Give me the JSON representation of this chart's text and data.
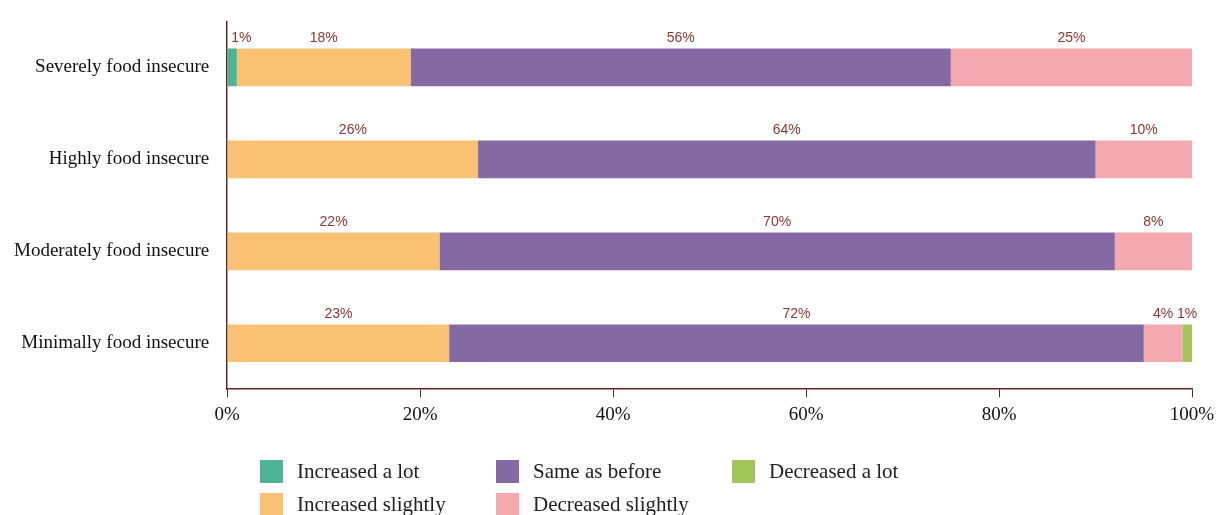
{
  "chart_data": {
    "type": "bar",
    "orientation": "horizontal",
    "stacked": true,
    "legend": "bottom",
    "grid": false,
    "categories": [
      "Severely food insecure",
      "Highly food insecure",
      "Moderately food insecure",
      "Minimally food insecure"
    ],
    "xlim": [
      0,
      100
    ],
    "xticks": [
      {
        "value": 0,
        "label": "0%"
      },
      {
        "value": 20,
        "label": "20%"
      },
      {
        "value": 40,
        "label": "40%"
      },
      {
        "value": 60,
        "label": "60%"
      },
      {
        "value": 80,
        "label": "80%"
      },
      {
        "value": 100,
        "label": "100%"
      }
    ],
    "series": [
      {
        "name": "Increased a lot",
        "color": "#4eb594",
        "values": [
          1,
          null,
          null,
          null
        ],
        "value_labels": [
          "1%",
          null,
          null,
          null
        ]
      },
      {
        "name": "Increased slightly",
        "color": "#f8c173",
        "values": [
          18,
          26,
          22,
          23
        ],
        "value_labels": [
          "18%",
          "26%",
          "22%",
          "23%"
        ]
      },
      {
        "name": "Same as before",
        "color": "#8469a4",
        "values": [
          56,
          64,
          70,
          72
        ],
        "value_labels": [
          "56%",
          "64%",
          "70%",
          "72%"
        ]
      },
      {
        "name": "Decreased slightly",
        "color": "#f4a9af",
        "values": [
          25,
          10,
          8,
          4
        ],
        "value_labels": [
          "25%",
          "10%",
          "8%",
          "4%"
        ]
      },
      {
        "name": "Decreased a lot",
        "color": "#a2c65a",
        "values": [
          null,
          null,
          null,
          1
        ],
        "value_labels": [
          null,
          null,
          null,
          "1%"
        ]
      }
    ]
  }
}
